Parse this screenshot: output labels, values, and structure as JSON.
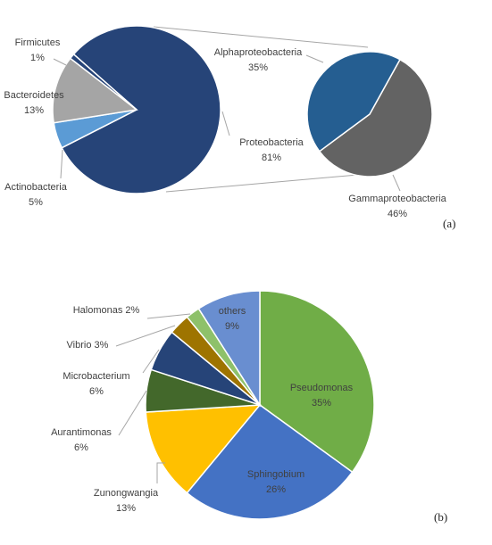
{
  "chart_data": [
    {
      "type": "pie",
      "panel_label": "(a)",
      "categories": [
        "Proteobacteria",
        "Actinobacteria",
        "Bacteroidetes",
        "Firmicutes"
      ],
      "values": [
        81,
        5,
        13,
        1
      ],
      "labels": [
        "Proteobacteria\n81%",
        "Actinobacteria\n5%",
        "Bacteroidetes\n13%",
        "Firmicutes\n1%"
      ],
      "colors": [
        "#264478",
        "#5B9BD5",
        "#A5A5A5",
        "#264478"
      ],
      "breakout": {
        "type": "pie",
        "parent": "Proteobacteria",
        "categories": [
          "Gammaproteobacteria",
          "Alphaproteobacteria"
        ],
        "values": [
          46,
          35
        ],
        "labels": [
          "Gammaproteobacteria\n46%",
          "Alphaproteobacteria\n35%"
        ],
        "colors": [
          "#636363",
          "#255E91"
        ]
      }
    },
    {
      "type": "pie",
      "panel_label": "(b)",
      "categories": [
        "Pseudomonas",
        "Sphingobium",
        "Zunongwangia",
        "Aurantimonas",
        "Microbacterium",
        "Vibrio",
        "Halomonas",
        "others"
      ],
      "values": [
        35,
        26,
        13,
        6,
        6,
        3,
        2,
        9
      ],
      "labels": [
        "Pseudomonas\n35%",
        "Sphingobium\n26%",
        "Zunongwangia\n13%",
        "Aurantimonas\n6%",
        "Microbacterium\n6%",
        "Vibrio 3%",
        "Halomonas 2%",
        "others\n9%"
      ],
      "colors": [
        "#70AD47",
        "#4472C4",
        "#FFC000",
        "#43682B",
        "#264478",
        "#9E7400",
        "#8EC16A",
        "#698ED0"
      ]
    }
  ]
}
